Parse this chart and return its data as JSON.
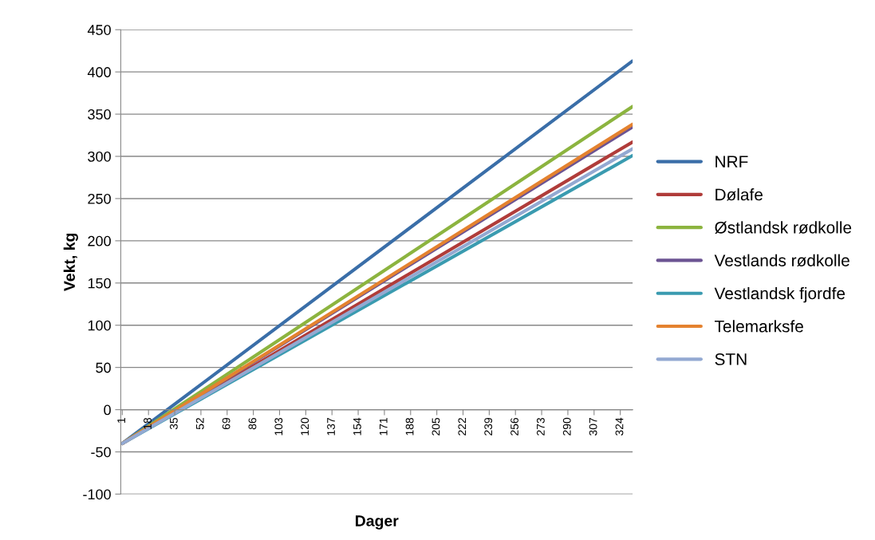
{
  "chart_data": {
    "type": "line",
    "xlabel": "Dager",
    "ylabel": "Vekt, kg",
    "xlim": [
      0,
      332
    ],
    "x": [
      1,
      332
    ],
    "xticks": [
      1,
      18,
      35,
      52,
      69,
      86,
      103,
      120,
      137,
      154,
      171,
      188,
      205,
      222,
      239,
      256,
      273,
      290,
      307,
      324
    ],
    "ylim": [
      -100,
      450
    ],
    "yticks": [
      -100,
      -50,
      0,
      50,
      100,
      150,
      200,
      250,
      300,
      350,
      400,
      450
    ],
    "grid": "y",
    "legend": "right",
    "marker": "none",
    "line_style": "solid",
    "series": [
      {
        "name": "NRF",
        "color": "#3a6ea8",
        "values": [
          -40,
          413
        ]
      },
      {
        "name": "Dølafe",
        "color": "#b03c3a",
        "values": [
          -40,
          317
        ]
      },
      {
        "name": "Østlandsk rødkolle",
        "color": "#8cb43f",
        "values": [
          -40,
          359
        ]
      },
      {
        "name": "Vestlands rødkolle",
        "color": "#6c5493",
        "values": [
          -40,
          335
        ]
      },
      {
        "name": "Vestlandsk fjordfe",
        "color": "#3a9bb0",
        "values": [
          -40,
          301
        ]
      },
      {
        "name": "Telemarksfe",
        "color": "#e4822f",
        "values": [
          -40,
          338
        ]
      },
      {
        "name": "STN",
        "color": "#93a9d2",
        "values": [
          -40,
          309
        ]
      }
    ]
  }
}
